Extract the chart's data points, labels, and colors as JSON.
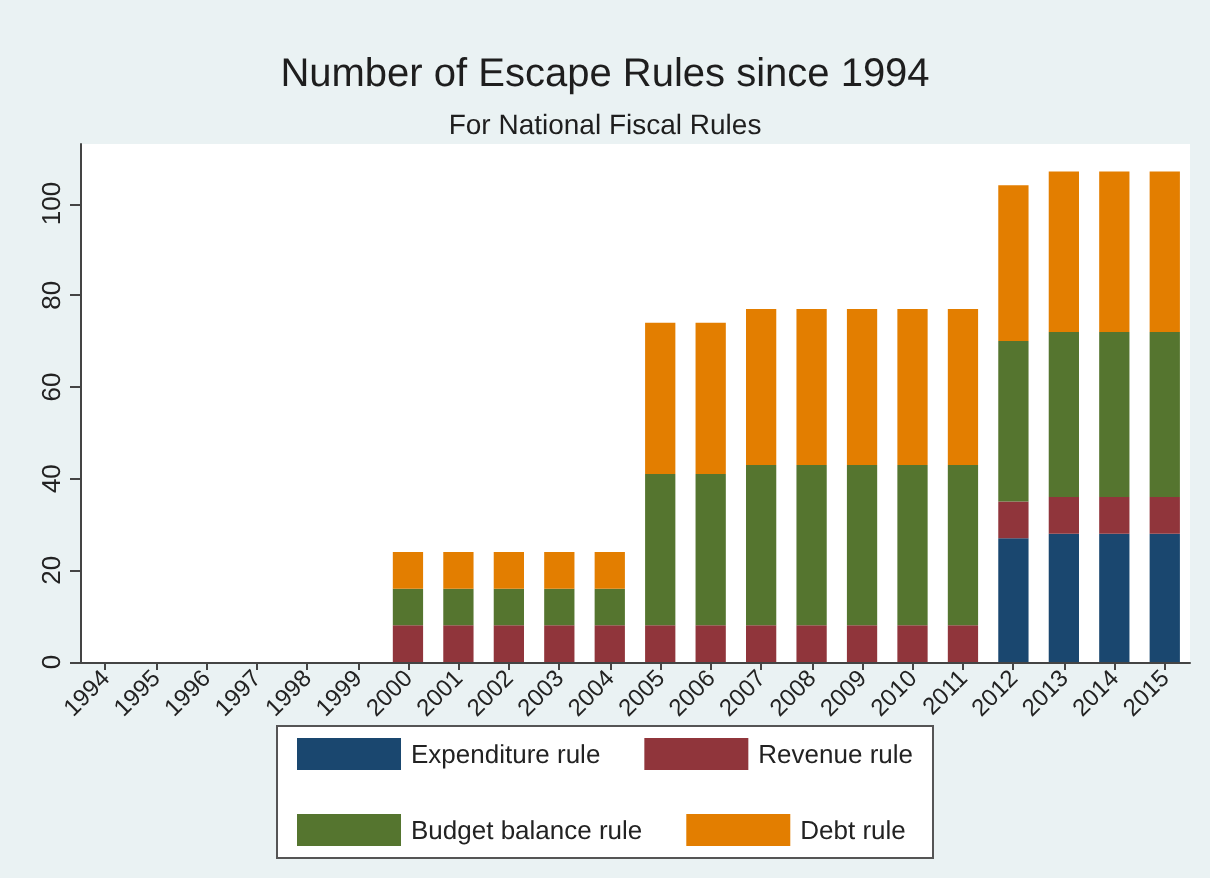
{
  "chart_data": {
    "type": "bar",
    "title": "Number of Escape Rules since 1994",
    "subtitle": "For National Fiscal Rules",
    "categories": [
      "1994",
      "1995",
      "1996",
      "1997",
      "1998",
      "1999",
      "2000",
      "2001",
      "2002",
      "2003",
      "2004",
      "2005",
      "2006",
      "2007",
      "2008",
      "2009",
      "2010",
      "2011",
      "2012",
      "2013",
      "2014",
      "2015"
    ],
    "stacked": true,
    "series": [
      {
        "name": "Expenditure rule",
        "color": "#1a476f",
        "values": [
          0,
          0,
          0,
          0,
          0,
          0,
          0,
          0,
          0,
          0,
          0,
          0,
          0,
          0,
          0,
          0,
          0,
          0,
          27,
          28,
          28,
          28
        ]
      },
      {
        "name": "Revenue rule",
        "color": "#90353b",
        "values": [
          0,
          0,
          0,
          0,
          0,
          0,
          8,
          8,
          8,
          8,
          8,
          8,
          8,
          8,
          8,
          8,
          8,
          8,
          8,
          8,
          8,
          8
        ]
      },
      {
        "name": "Budget balance rule",
        "color": "#55752f",
        "values": [
          0,
          0,
          0,
          0,
          0,
          0,
          8,
          8,
          8,
          8,
          8,
          33,
          33,
          35,
          35,
          35,
          35,
          35,
          35,
          36,
          36,
          36
        ]
      },
      {
        "name": "Debt rule",
        "color": "#e37e00",
        "values": [
          0,
          0,
          0,
          0,
          0,
          0,
          8,
          8,
          8,
          8,
          8,
          33,
          33,
          34,
          34,
          34,
          34,
          34,
          34,
          35,
          35,
          35
        ]
      }
    ],
    "ylim": [
      0,
      113
    ],
    "yticks": [
      0,
      20,
      40,
      60,
      80,
      100
    ],
    "grid": false,
    "legend": "bottom"
  }
}
